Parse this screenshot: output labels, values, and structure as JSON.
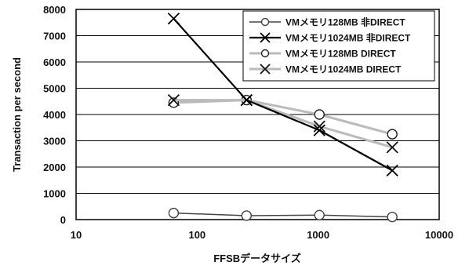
{
  "chart_data": {
    "type": "line",
    "xscale": "log",
    "xlim": [
      10,
      10000
    ],
    "ylim": [
      0,
      8000
    ],
    "x_ticks": [
      10,
      100,
      1000,
      10000
    ],
    "x_tick_labels": [
      "10",
      "100",
      "1000",
      "10000"
    ],
    "y_ticks": [
      0,
      1000,
      2000,
      3000,
      4000,
      5000,
      6000,
      7000,
      8000
    ],
    "y_tick_labels": [
      "0",
      "1000",
      "2000",
      "3000",
      "4000",
      "5000",
      "6000",
      "7000",
      "8000"
    ],
    "xlabel": "FFSBデータサイズ",
    "ylabel": "Transaction per second",
    "grid": "horizontal",
    "legend_position": "top-right",
    "series": [
      {
        "name": "VMメモリ128MB 非DIRECT",
        "marker": "circle",
        "line_style": "dark",
        "color": "#444444",
        "x": [
          64,
          256,
          1024,
          4096
        ],
        "y": [
          250,
          150,
          170,
          100
        ]
      },
      {
        "name": "VMメモリ1024MB 非DIRECT",
        "marker": "cross",
        "line_style": "dark-thick",
        "color": "#000000",
        "x": [
          64,
          256,
          1024,
          4096
        ],
        "y": [
          7650,
          4550,
          3400,
          1870
        ]
      },
      {
        "name": "VMメモリ128MB DIRECT",
        "marker": "circle",
        "line_style": "light",
        "color": "#bbbbbb",
        "x": [
          64,
          256,
          1024,
          4096
        ],
        "y": [
          4450,
          4550,
          4000,
          3250
        ]
      },
      {
        "name": "VMメモリ1024MB DIRECT",
        "marker": "cross",
        "line_style": "light",
        "color": "#bbbbbb",
        "x": [
          64,
          256,
          1024,
          4096
        ],
        "y": [
          4550,
          4550,
          3550,
          2750
        ]
      }
    ]
  }
}
